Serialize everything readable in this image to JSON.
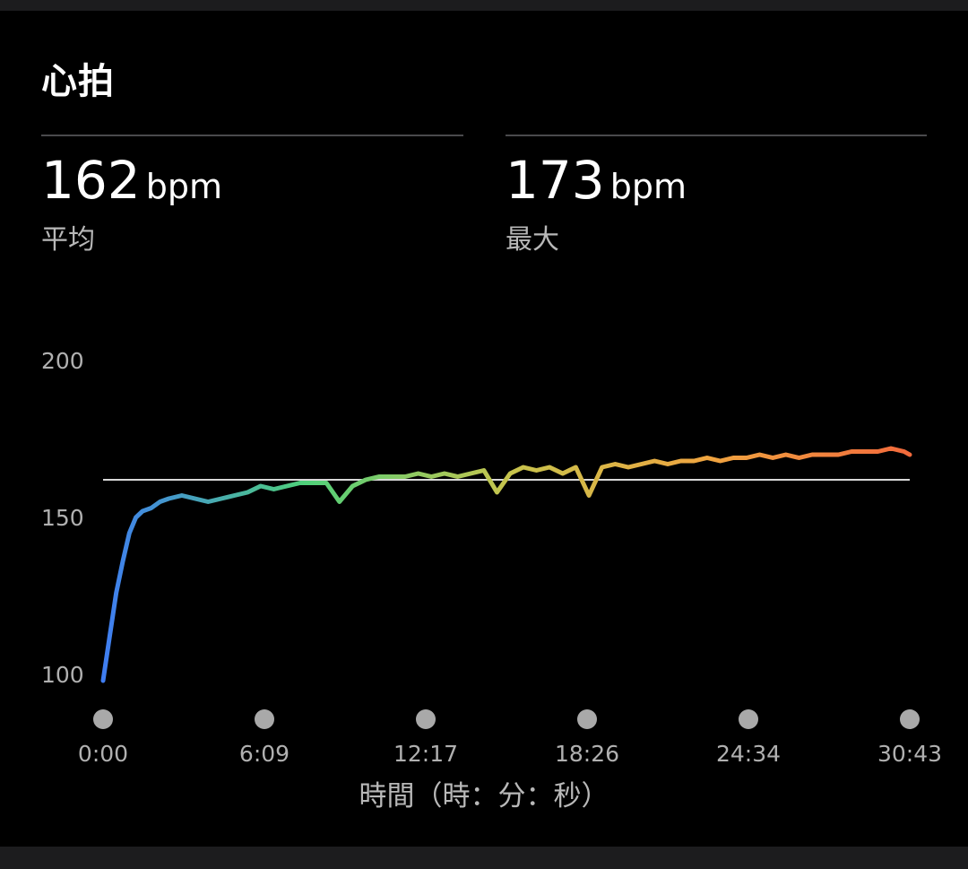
{
  "header": {
    "title": "心拍"
  },
  "stats": [
    {
      "value": "162",
      "unit": "bpm",
      "label": "平均"
    },
    {
      "value": "173",
      "unit": "bpm",
      "label": "最大"
    }
  ],
  "chart_data": {
    "type": "line",
    "title": "心拍",
    "xlabel": "時間（時：分：秒）",
    "ylabel": "",
    "x_ticks": [
      "0:00",
      "6:09",
      "12:17",
      "18:26",
      "24:34",
      "30:43"
    ],
    "y_ticks": [
      100,
      150,
      200
    ],
    "ylim": [
      100,
      200
    ],
    "xlim_seconds": [
      0,
      1843
    ],
    "average_line": 162,
    "max": 173,
    "grid": false,
    "gradient_colors": [
      "#3f7df2",
      "#4fd07a",
      "#c6c44d",
      "#f0a540",
      "#f26a3c"
    ],
    "series": [
      {
        "x_seconds": [
          0,
          15,
          30,
          45,
          60,
          75,
          90,
          110,
          130,
          150,
          180,
          210,
          240,
          270,
          300,
          330,
          360,
          390,
          420,
          450,
          480,
          510,
          540,
          570,
          600,
          630,
          660,
          690,
          720,
          750,
          780,
          810,
          840,
          870,
          900,
          930,
          960,
          990,
          1020,
          1050,
          1080,
          1110,
          1140,
          1170,
          1200,
          1230,
          1260,
          1290,
          1320,
          1350,
          1380,
          1410,
          1440,
          1470,
          1500,
          1530,
          1560,
          1590,
          1620,
          1650,
          1680,
          1710,
          1740,
          1770,
          1800,
          1830,
          1843
        ],
        "values": [
          98,
          112,
          126,
          136,
          145,
          150,
          152,
          153,
          155,
          156,
          157,
          156,
          155,
          156,
          157,
          158,
          160,
          159,
          160,
          161,
          161,
          161,
          155,
          160,
          162,
          163,
          163,
          163,
          164,
          163,
          164,
          163,
          164,
          165,
          158,
          164,
          166,
          165,
          166,
          164,
          166,
          157,
          166,
          167,
          166,
          167,
          168,
          167,
          168,
          168,
          169,
          168,
          169,
          169,
          170,
          169,
          170,
          169,
          170,
          170,
          170,
          171,
          171,
          171,
          172,
          171,
          170
        ]
      }
    ]
  }
}
